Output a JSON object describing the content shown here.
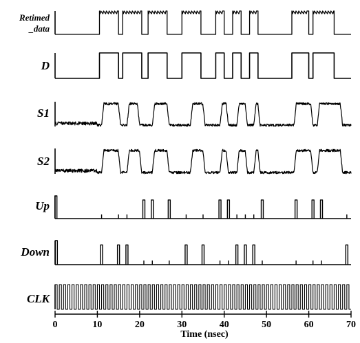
{
  "chart_data": {
    "type": "line",
    "title": "",
    "xlabel": "Time (nsec)",
    "ylabel": "",
    "xlim": [
      0,
      70
    ],
    "xticks": [
      "0",
      "10",
      "20",
      "30",
      "40",
      "50",
      "60",
      "70"
    ],
    "grid": false,
    "color": "#000000",
    "series": [
      {
        "name": "Retimed _data",
        "kind": "bursts",
        "intervals": [
          [
            10.5,
            15
          ],
          [
            16,
            20.5
          ],
          [
            22,
            26.5
          ],
          [
            30,
            34.5
          ],
          [
            38,
            40
          ],
          [
            42,
            44
          ],
          [
            46,
            48
          ],
          [
            56,
            60
          ],
          [
            61,
            66
          ]
        ]
      },
      {
        "name": "D",
        "kind": "digital",
        "intervals": [
          [
            10.5,
            15
          ],
          [
            16,
            20.5
          ],
          [
            22,
            26.5
          ],
          [
            30,
            34.5
          ],
          [
            38,
            40
          ],
          [
            42,
            44
          ],
          [
            46,
            48
          ],
          [
            56,
            60
          ],
          [
            61,
            66
          ]
        ]
      },
      {
        "name": "S1",
        "kind": "analog",
        "intervals": [
          [
            11,
            15.5
          ],
          [
            17,
            20
          ],
          [
            23,
            27
          ],
          [
            32,
            35.5
          ],
          [
            39,
            41
          ],
          [
            43,
            45.5
          ],
          [
            47,
            48.5
          ],
          [
            56.5,
            61
          ],
          [
            62,
            68
          ]
        ]
      },
      {
        "name": "S2",
        "kind": "analog",
        "intervals": [
          [
            11,
            15.5
          ],
          [
            17,
            20.5
          ],
          [
            23,
            27
          ],
          [
            32,
            35.5
          ],
          [
            39,
            41
          ],
          [
            43,
            45.5
          ],
          [
            47,
            48.5
          ],
          [
            56.5,
            61
          ],
          [
            62,
            68
          ]
        ]
      },
      {
        "name": "Up",
        "kind": "pulses",
        "pulses": [
          0.2,
          21,
          23,
          27,
          39,
          41,
          49,
          57,
          61,
          63
        ],
        "small_pulses": [
          11,
          15,
          17,
          31,
          35,
          43,
          45,
          47,
          69
        ]
      },
      {
        "name": "Down",
        "kind": "pulses",
        "pulses": [
          0.3,
          11,
          15,
          17,
          31,
          35,
          43,
          45,
          47,
          69
        ],
        "small_pulses": [
          21,
          23,
          27,
          39,
          41,
          49,
          57,
          61,
          63
        ]
      },
      {
        "name": "CLK",
        "kind": "clock",
        "period_ns": 1.0
      }
    ]
  }
}
